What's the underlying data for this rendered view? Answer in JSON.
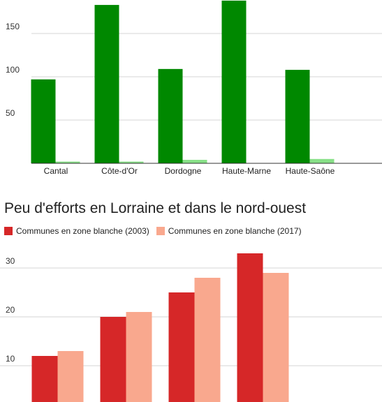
{
  "chart_data": [
    {
      "type": "bar",
      "title": "",
      "categories": [
        "Cantal",
        "Côte-d'Or",
        "Dordogne",
        "Haute-Marne",
        "Haute-Saône"
      ],
      "series": [
        {
          "color": "#008800",
          "values": [
            97,
            183,
            109,
            188,
            108
          ]
        },
        {
          "color": "#88e088",
          "values": [
            2,
            2,
            4,
            0,
            5
          ]
        }
      ],
      "yticks": [
        50,
        100,
        150
      ],
      "ylim": [
        0,
        200
      ],
      "grid": true
    },
    {
      "type": "bar",
      "title": "Peu d'efforts en Lorraine et dans le nord-ouest",
      "legend_position": "top-left",
      "categories": [
        "",
        "",
        "",
        "",
        ""
      ],
      "series": [
        {
          "name": "Communes en zone blanche (2003)",
          "color": "#d62728",
          "values": [
            12,
            20,
            25,
            33,
            0
          ]
        },
        {
          "name": "Communes en zone blanche (2017)",
          "color": "#f9a88e",
          "values": [
            13,
            21,
            28,
            29,
            0.2
          ]
        }
      ],
      "yticks": [
        10,
        20,
        30
      ],
      "ylim": [
        0,
        36
      ],
      "grid": true
    }
  ]
}
